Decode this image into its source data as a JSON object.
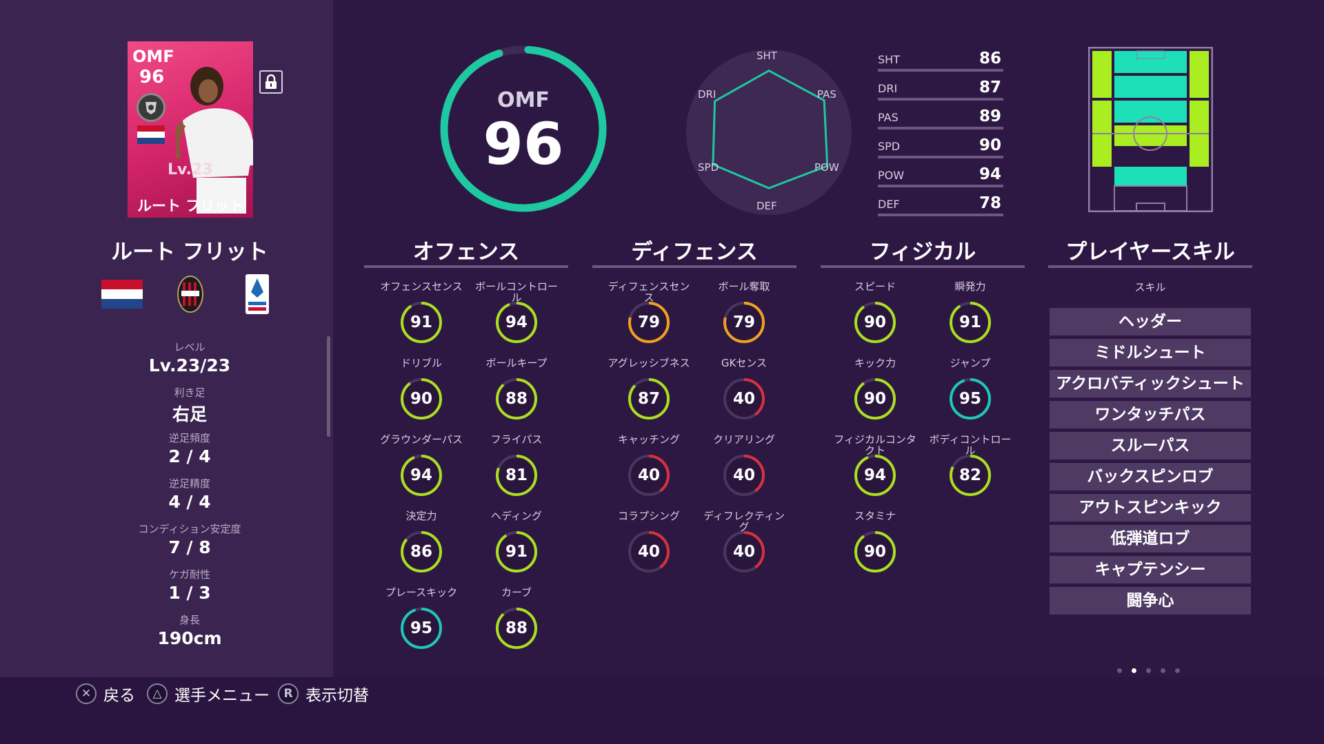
{
  "player_card": {
    "position": "OMF",
    "overall": "96",
    "level": "Lv.23",
    "name": "ルート フリット"
  },
  "player": {
    "name": "ルート フリット",
    "info": [
      {
        "label": "レベル",
        "value": "Lv.23/23"
      },
      {
        "label": "利き足",
        "value": "右足"
      },
      {
        "label": "逆足頻度",
        "value": "2 / 4"
      },
      {
        "label": "逆足精度",
        "value": "4 / 4"
      },
      {
        "label": "コンディション安定度",
        "value": "7 / 8"
      },
      {
        "label": "ケガ耐性",
        "value": "1 / 3"
      },
      {
        "label": "身長",
        "value": "190cm"
      }
    ]
  },
  "overall_display": {
    "position": "OMF",
    "rating": "96",
    "fraction": 0.96
  },
  "radar": {
    "labels": [
      "SHT",
      "PAS",
      "POW",
      "DEF",
      "SPD",
      "DRI"
    ],
    "values": [
      86,
      89,
      94,
      78,
      90,
      87
    ]
  },
  "summary_stats": [
    {
      "label": "SHT",
      "value": "86"
    },
    {
      "label": "DRI",
      "value": "87"
    },
    {
      "label": "PAS",
      "value": "89"
    },
    {
      "label": "SPD",
      "value": "90"
    },
    {
      "label": "POW",
      "value": "94"
    },
    {
      "label": "DEF",
      "value": "78"
    }
  ],
  "sections": {
    "offense": {
      "title": "オフェンス",
      "stats": [
        {
          "label": "オフェンスセンス",
          "value": "91"
        },
        {
          "label": "ボールコントロール",
          "value": "94"
        },
        {
          "label": "ドリブル",
          "value": "90"
        },
        {
          "label": "ボールキープ",
          "value": "88"
        },
        {
          "label": "グラウンダーパス",
          "value": "94"
        },
        {
          "label": "フライパス",
          "value": "81"
        },
        {
          "label": "決定力",
          "value": "86"
        },
        {
          "label": "ヘディング",
          "value": "91"
        },
        {
          "label": "プレースキック",
          "value": "95"
        },
        {
          "label": "カーブ",
          "value": "88"
        }
      ]
    },
    "defense": {
      "title": "ディフェンス",
      "stats": [
        {
          "label": "ディフェンスセンス",
          "value": "79"
        },
        {
          "label": "ボール奪取",
          "value": "79"
        },
        {
          "label": "アグレッシブネス",
          "value": "87"
        },
        {
          "label": "GKセンス",
          "value": "40"
        },
        {
          "label": "キャッチング",
          "value": "40"
        },
        {
          "label": "クリアリング",
          "value": "40"
        },
        {
          "label": "コラプシング",
          "value": "40"
        },
        {
          "label": "ディフレクティング",
          "value": "40"
        }
      ]
    },
    "physical": {
      "title": "フィジカル",
      "stats": [
        {
          "label": "スピード",
          "value": "90"
        },
        {
          "label": "瞬発力",
          "value": "91"
        },
        {
          "label": "キック力",
          "value": "90"
        },
        {
          "label": "ジャンプ",
          "value": "95"
        },
        {
          "label": "フィジカルコンタクト",
          "value": "94"
        },
        {
          "label": "ボディコントロール",
          "value": "82"
        },
        {
          "label": "スタミナ",
          "value": "90"
        }
      ]
    },
    "skills": {
      "title": "プレイヤースキル",
      "header": "スキル",
      "items": [
        "ヘッダー",
        "ミドルシュート",
        "アクロバティックシュート",
        "ワンタッチパス",
        "スルーパス",
        "バックスピンロブ",
        "アウトスピンキック",
        "低弾道ロブ",
        "キャプテンシー",
        "闘争心"
      ]
    }
  },
  "pagination": {
    "total": 5,
    "active": 2
  },
  "controls": [
    {
      "button": "✕",
      "label": "戻る"
    },
    {
      "button": "△",
      "label": "選手メニュー"
    },
    {
      "button": "R",
      "label": "表示切替"
    }
  ],
  "colors": {
    "background": "#2d1843",
    "panel": "#3b2450",
    "accent_teal": "#1ec8a0",
    "rating_95_plus": "#1ec8b4",
    "rating_80_plus": "#aadf20",
    "rating_75_plus": "#f0a020",
    "rating_low": "#d83040"
  }
}
